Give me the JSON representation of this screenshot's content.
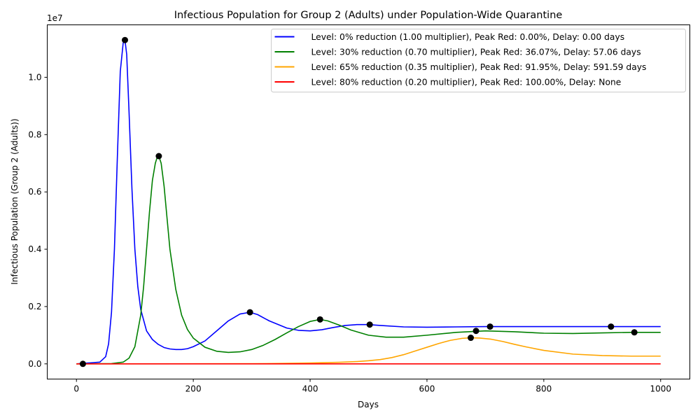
{
  "chart_data": {
    "type": "line",
    "title": "Infectious Population for Group 2 (Adults) under Population-Wide Quarantine",
    "xlabel": "Days",
    "ylabel": "Infectious Population (Group 2 (Adults))",
    "y_offset_label": "1e7",
    "xlim": [
      -50,
      1050
    ],
    "ylim": [
      -530000,
      11830000
    ],
    "x_ticks": [
      0,
      200,
      400,
      600,
      800,
      1000
    ],
    "x_tick_labels": [
      "0",
      "200",
      "400",
      "600",
      "800",
      "1000"
    ],
    "y_ticks": [
      0,
      2000000,
      4000000,
      6000000,
      8000000,
      10000000
    ],
    "y_tick_labels": [
      "0.0",
      "0.2",
      "0.4",
      "0.6",
      "0.8",
      "1.0"
    ],
    "grid": false,
    "legend_position": "top-right",
    "series": [
      {
        "name": "Level: 0% reduction (1.00 multiplier), Peak Red: 0.00%, Delay: 0.00 days",
        "color": "#0000ff",
        "x": [
          0,
          40,
          50,
          55,
          60,
          65,
          70,
          75,
          80,
          83,
          86,
          90,
          95,
          100,
          105,
          110,
          120,
          130,
          140,
          150,
          160,
          170,
          180,
          190,
          200,
          220,
          240,
          260,
          280,
          297,
          310,
          330,
          360,
          380,
          400,
          420,
          440,
          460,
          480,
          500,
          520,
          560,
          600,
          650,
          700,
          800,
          900,
          1000
        ],
        "y": [
          0,
          60000,
          250000,
          700000,
          1800000,
          4000000,
          7200000,
          10200000,
          11200000,
          11300000,
          10800000,
          8800000,
          6100000,
          4000000,
          2700000,
          1900000,
          1150000,
          850000,
          680000,
          570000,
          520000,
          500000,
          500000,
          530000,
          600000,
          800000,
          1150000,
          1500000,
          1740000,
          1800000,
          1720000,
          1500000,
          1250000,
          1170000,
          1150000,
          1190000,
          1270000,
          1340000,
          1370000,
          1370000,
          1340000,
          1290000,
          1280000,
          1290000,
          1300000,
          1300000,
          1300000,
          1300000
        ]
      },
      {
        "name": "Level: 30% reduction (0.70 multiplier), Peak Red: 36.07%, Delay: 57.06 days",
        "color": "#008000",
        "x": [
          0,
          60,
          80,
          90,
          100,
          110,
          115,
          120,
          125,
          130,
          135,
          138,
          141,
          145,
          150,
          155,
          160,
          170,
          180,
          190,
          200,
          220,
          240,
          260,
          280,
          300,
          320,
          340,
          360,
          380,
          400,
          417,
          430,
          450,
          470,
          500,
          530,
          560,
          600,
          650,
          700,
          750,
          800,
          850,
          900,
          950,
          1000
        ],
        "y": [
          0,
          10000,
          60000,
          200000,
          600000,
          1700000,
          2700000,
          4000000,
          5300000,
          6400000,
          7000000,
          7200000,
          7250000,
          7000000,
          6200000,
          5100000,
          4000000,
          2600000,
          1700000,
          1200000,
          900000,
          580000,
          440000,
          400000,
          420000,
          500000,
          650000,
          850000,
          1080000,
          1300000,
          1480000,
          1550000,
          1500000,
          1350000,
          1180000,
          1000000,
          930000,
          930000,
          1000000,
          1100000,
          1150000,
          1120000,
          1070000,
          1060000,
          1080000,
          1100000,
          1100000
        ]
      },
      {
        "name": "Level: 65% reduction (0.35 multiplier), Peak Red: 91.95%, Delay: 591.59 days",
        "color": "#ffa500",
        "x": [
          0,
          300,
          350,
          400,
          450,
          480,
          500,
          520,
          540,
          560,
          580,
          600,
          620,
          640,
          660,
          675,
          690,
          710,
          730,
          750,
          770,
          800,
          850,
          900,
          950,
          1000
        ],
        "y": [
          0,
          5000,
          15000,
          30000,
          55000,
          80000,
          110000,
          150000,
          220000,
          320000,
          450000,
          580000,
          710000,
          820000,
          890000,
          910000,
          900000,
          860000,
          780000,
          680000,
          590000,
          470000,
          340000,
          290000,
          270000,
          270000
        ]
      },
      {
        "name": "Level: 80% reduction (0.20 multiplier), Peak Red: 100.00%, Delay: None",
        "color": "#ff0000",
        "x": [
          0,
          1000
        ],
        "y": [
          0,
          0
        ]
      }
    ],
    "markers": {
      "color": "#000000",
      "points": [
        {
          "x": 11,
          "y": 0
        },
        {
          "x": 83,
          "y": 11300000
        },
        {
          "x": 141,
          "y": 7250000
        },
        {
          "x": 297,
          "y": 1800000
        },
        {
          "x": 417,
          "y": 1550000
        },
        {
          "x": 502,
          "y": 1370000
        },
        {
          "x": 675,
          "y": 910000
        },
        {
          "x": 684,
          "y": 1150000
        },
        {
          "x": 708,
          "y": 1300000
        },
        {
          "x": 915,
          "y": 1300000
        },
        {
          "x": 955,
          "y": 1100000
        }
      ]
    }
  }
}
